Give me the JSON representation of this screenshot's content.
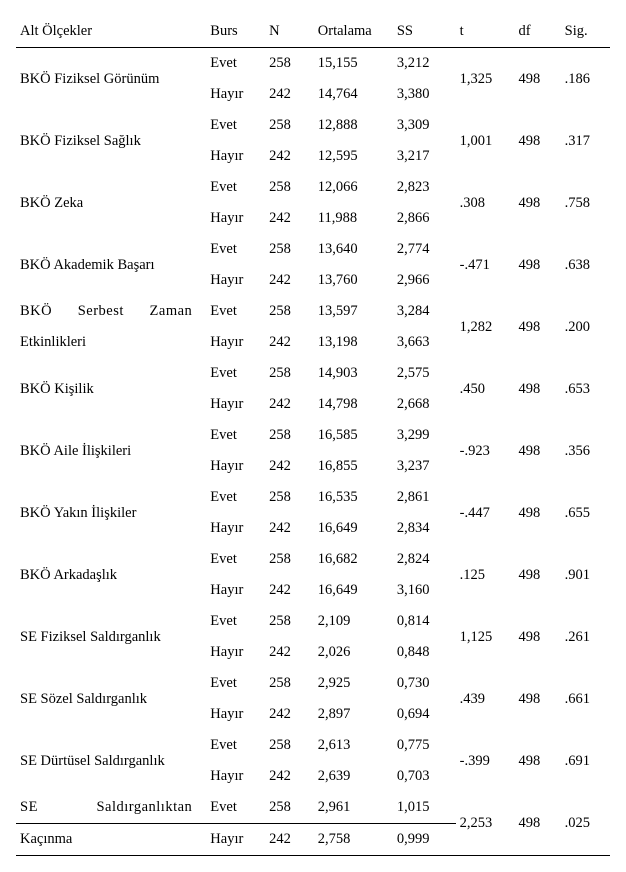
{
  "columns": {
    "scale": "Alt Ölçekler",
    "burs": "Burs",
    "n": "N",
    "ort": "Ortalama",
    "ss": "SS",
    "t": "t",
    "df": "df",
    "sig": "Sig."
  },
  "groups": [
    {
      "scale_line1": "BKÖ Fiziksel Görünüm",
      "scale_line2": "",
      "scale_justify": false,
      "row1": {
        "burs": "Evet",
        "n": "258",
        "ort": "15,155",
        "ss": "3,212"
      },
      "row2": {
        "burs": "Hayır",
        "n": "242",
        "ort": "14,764",
        "ss": "3,380"
      },
      "t": "1,325",
      "df": "498",
      "sig": ".186"
    },
    {
      "scale_line1": "BKÖ Fiziksel Sağlık",
      "scale_line2": "",
      "scale_justify": false,
      "row1": {
        "burs": "Evet",
        "n": "258",
        "ort": "12,888",
        "ss": "3,309"
      },
      "row2": {
        "burs": "Hayır",
        "n": "242",
        "ort": "12,595",
        "ss": "3,217"
      },
      "t": "1,001",
      "df": "498",
      "sig": ".317"
    },
    {
      "scale_line1": "BKÖ Zeka",
      "scale_line2": "",
      "scale_justify": false,
      "row1": {
        "burs": "Evet",
        "n": "258",
        "ort": "12,066",
        "ss": "2,823"
      },
      "row2": {
        "burs": "Hayır",
        "n": "242",
        "ort": "11,988",
        "ss": "2,866"
      },
      "t": ".308",
      "df": "498",
      "sig": ".758"
    },
    {
      "scale_line1": "BKÖ Akademik Başarı",
      "scale_line2": "",
      "scale_justify": false,
      "row1": {
        "burs": "Evet",
        "n": "258",
        "ort": "13,640",
        "ss": "2,774"
      },
      "row2": {
        "burs": "Hayır",
        "n": "242",
        "ort": "13,760",
        "ss": "2,966"
      },
      "t": "-.471",
      "df": "498",
      "sig": ".638"
    },
    {
      "scale_line1": "BKÖ Serbest Zaman",
      "scale_line2": "Etkinlikleri",
      "scale_justify": true,
      "row1": {
        "burs": "Evet",
        "n": "258",
        "ort": "13,597",
        "ss": "3,284"
      },
      "row2": {
        "burs": "Hayır",
        "n": "242",
        "ort": "13,198",
        "ss": "3,663"
      },
      "t": "1,282",
      "df": "498",
      "sig": ".200"
    },
    {
      "scale_line1": "BKÖ Kişilik",
      "scale_line2": "",
      "scale_justify": false,
      "row1": {
        "burs": "Evet",
        "n": "258",
        "ort": "14,903",
        "ss": "2,575"
      },
      "row2": {
        "burs": "Hayır",
        "n": "242",
        "ort": "14,798",
        "ss": "2,668"
      },
      "t": ".450",
      "df": "498",
      "sig": ".653"
    },
    {
      "scale_line1": "BKÖ Aile İlişkileri",
      "scale_line2": "",
      "scale_justify": false,
      "row1": {
        "burs": "Evet",
        "n": "258",
        "ort": "16,585",
        "ss": "3,299"
      },
      "row2": {
        "burs": "Hayır",
        "n": "242",
        "ort": "16,855",
        "ss": "3,237"
      },
      "t": "-.923",
      "df": "498",
      "sig": ".356"
    },
    {
      "scale_line1": "BKÖ Yakın İlişkiler",
      "scale_line2": "",
      "scale_justify": false,
      "row1": {
        "burs": "Evet",
        "n": "258",
        "ort": "16,535",
        "ss": "2,861"
      },
      "row2": {
        "burs": "Hayır",
        "n": "242",
        "ort": "16,649",
        "ss": "2,834"
      },
      "t": "-.447",
      "df": "498",
      "sig": ".655"
    },
    {
      "scale_line1": "BKÖ Arkadaşlık",
      "scale_line2": "",
      "scale_justify": false,
      "row1": {
        "burs": "Evet",
        "n": "258",
        "ort": "16,682",
        "ss": "2,824"
      },
      "row2": {
        "burs": "Hayır",
        "n": "242",
        "ort": "16,649",
        "ss": "3,160"
      },
      "t": ".125",
      "df": "498",
      "sig": ".901"
    },
    {
      "scale_line1": "SE Fiziksel Saldırganlık",
      "scale_line2": "",
      "scale_justify": false,
      "row1": {
        "burs": "Evet",
        "n": "258",
        "ort": "2,109",
        "ss": "0,814"
      },
      "row2": {
        "burs": "Hayır",
        "n": "242",
        "ort": "2,026",
        "ss": "0,848"
      },
      "t": "1,125",
      "df": "498",
      "sig": ".261"
    },
    {
      "scale_line1": "SE Sözel Saldırganlık",
      "scale_line2": "",
      "scale_justify": false,
      "row1": {
        "burs": "Evet",
        "n": "258",
        "ort": "2,925",
        "ss": "0,730"
      },
      "row2": {
        "burs": "Hayır",
        "n": "242",
        "ort": "2,897",
        "ss": "0,694"
      },
      "t": ".439",
      "df": "498",
      "sig": ".661"
    },
    {
      "scale_line1": "SE Dürtüsel Saldırganlık",
      "scale_line2": "",
      "scale_justify": false,
      "row1": {
        "burs": "Evet",
        "n": "258",
        "ort": "2,613",
        "ss": "0,775"
      },
      "row2": {
        "burs": "Hayır",
        "n": "242",
        "ort": "2,639",
        "ss": "0,703"
      },
      "t": "-.399",
      "df": "498",
      "sig": ".691"
    },
    {
      "scale_line1": "SE Saldırganlıktan",
      "scale_line2": "Kaçınma",
      "scale_justify": true,
      "row1": {
        "burs": "Evet",
        "n": "258",
        "ort": "2,961",
        "ss": "1,015"
      },
      "row2": {
        "burs": "Hayır",
        "n": "242",
        "ort": "2,758",
        "ss": "0,999"
      },
      "t": "2,253",
      "df": "498",
      "sig": ".025"
    }
  ]
}
